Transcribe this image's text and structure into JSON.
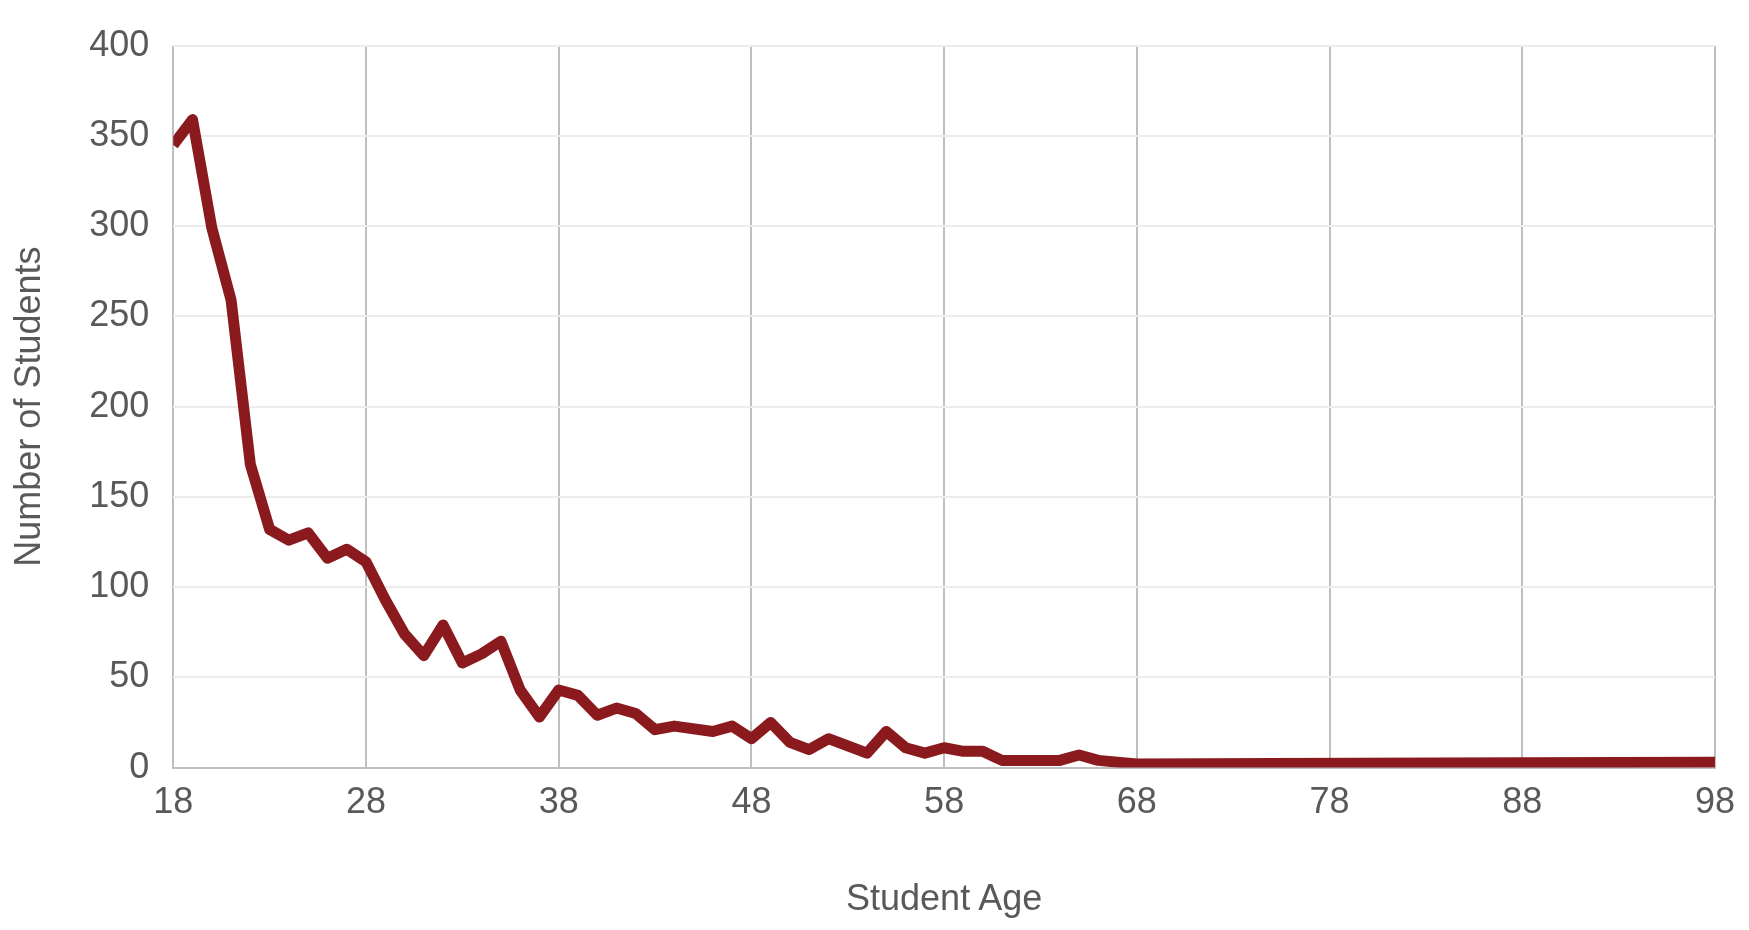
{
  "chart_data": {
    "type": "line",
    "xlabel": "Student Age",
    "ylabel": "Number of Students",
    "x": [
      18,
      19,
      20,
      21,
      22,
      23,
      24,
      25,
      26,
      27,
      28,
      29,
      30,
      31,
      32,
      33,
      34,
      35,
      36,
      37,
      38,
      39,
      40,
      41,
      42,
      43,
      44,
      46,
      47,
      48,
      49,
      50,
      51,
      52,
      54,
      55,
      56,
      57,
      58,
      59,
      60,
      61,
      64,
      65,
      66,
      68,
      98
    ],
    "series": [
      {
        "color": "#8b1a1e",
        "values": [
          345,
          359,
          299,
          259,
          168,
          132,
          126,
          130,
          116,
          121,
          114,
          93,
          74,
          62,
          79,
          58,
          63,
          70,
          43,
          28,
          43,
          40,
          29,
          33,
          30,
          21,
          23,
          20,
          23,
          16,
          25,
          14,
          10,
          16,
          8,
          20,
          11,
          8,
          11,
          9,
          9,
          4,
          4,
          7,
          4,
          2,
          3
        ]
      }
    ],
    "xlim": [
      18,
      98
    ],
    "xticks": [
      18,
      28,
      38,
      48,
      58,
      68,
      78,
      88,
      98
    ],
    "ylim": [
      0,
      400
    ],
    "yticks": [
      0,
      50,
      100,
      150,
      200,
      250,
      300,
      350,
      400
    ],
    "grid": true,
    "legend": false,
    "marker": "none",
    "line_style": "solid"
  }
}
